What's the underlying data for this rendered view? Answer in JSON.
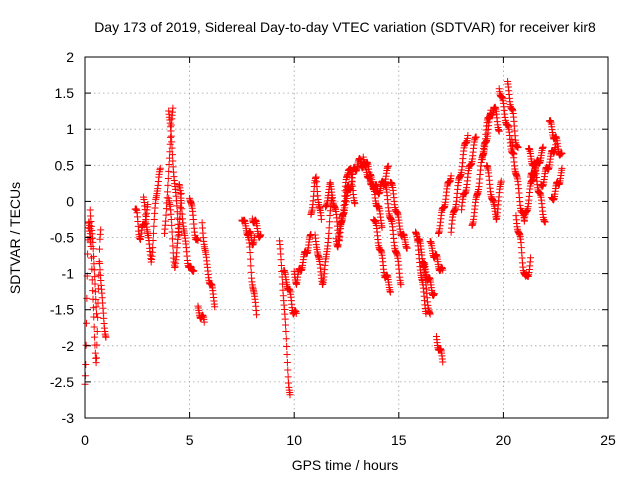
{
  "chart_data": {
    "type": "scatter",
    "title": "Day 173 of 2019, Sidereal Day-to-day VTEC variation (SDTVAR) for receiver kir8",
    "xlabel": "GPS time / hours",
    "ylabel": "SDTVAR / TECUs",
    "xlim": [
      0,
      25
    ],
    "ylim": [
      -3,
      2
    ],
    "xticks": [
      0,
      5,
      10,
      15,
      20,
      25
    ],
    "xtick_labels": [
      "0",
      "5",
      "10",
      "15",
      "20",
      "25"
    ],
    "yticks": [
      -3,
      -2.5,
      -2,
      -1.5,
      -1,
      -0.5,
      0,
      0.5,
      1,
      1.5,
      2
    ],
    "ytick_labels": [
      "-3",
      "-2.5",
      "-2",
      "-1.5",
      "-1",
      "-0.5",
      "0",
      "0.5",
      "1",
      "1.5",
      "2"
    ],
    "grid": true,
    "marker": "+",
    "color": "#ff0000",
    "series": [
      {
        "name": "SDTVAR",
        "segments": [
          {
            "x0": 0.0,
            "x1": 0.25,
            "y": [
              -2.55,
              -2.3,
              -1.8,
              -1.2,
              -0.7,
              -0.4,
              -0.3,
              -0.5,
              -0.6
            ]
          },
          {
            "x0": 0.2,
            "x1": 0.75,
            "y": [
              -0.3,
              -0.35,
              -0.5,
              -0.9,
              -1.3,
              -1.6,
              -1.9,
              -2.1,
              -2.2,
              -1.8,
              -1.4,
              -1.0,
              -0.6,
              -0.4
            ]
          },
          {
            "x0": 0.25,
            "x1": 0.55,
            "y": [
              -0.1,
              -0.25,
              -0.4,
              -0.6,
              -0.9,
              -1.1,
              -1.3,
              -1.5
            ]
          },
          {
            "x0": 0.7,
            "x1": 1.0,
            "y": [
              -0.8,
              -1.2,
              -1.5,
              -1.7,
              -1.85
            ]
          },
          {
            "x0": 2.4,
            "x1": 3.0,
            "y": [
              -0.1,
              -0.2,
              -0.4,
              -0.5,
              -0.4,
              -0.3,
              -0.2,
              -0.1
            ]
          },
          {
            "x0": 2.8,
            "x1": 3.6,
            "y": [
              0.0,
              -0.1,
              -0.3,
              -0.5,
              -0.7,
              -0.8,
              -0.6,
              -0.3,
              0.0,
              0.2,
              0.35,
              0.4
            ]
          },
          {
            "x0": 3.8,
            "x1": 4.2,
            "y": [
              -0.5,
              -0.3,
              0.0,
              0.2,
              0.4,
              0.6,
              0.9,
              1.2,
              1.35
            ]
          },
          {
            "x0": 4.0,
            "x1": 4.5,
            "y": [
              1.3,
              1.1,
              0.9,
              0.7,
              0.5,
              0.3,
              0.1,
              -0.1,
              -0.3,
              -0.4
            ]
          },
          {
            "x0": 4.0,
            "x1": 4.6,
            "y": [
              0.1,
              -0.1,
              -0.4,
              -0.7,
              -0.9,
              -0.8,
              -0.5,
              -0.2,
              0.1
            ]
          },
          {
            "x0": 4.5,
            "x1": 5.2,
            "y": [
              0.2,
              0.0,
              -0.3,
              -0.6,
              -0.8,
              -0.9,
              -1.0,
              -0.9
            ]
          },
          {
            "x0": 5.0,
            "x1": 5.4,
            "y": [
              0.1,
              -0.1,
              -0.3,
              -0.5,
              -0.6
            ]
          },
          {
            "x0": 5.4,
            "x1": 5.7,
            "y": [
              -1.5,
              -1.55,
              -1.6,
              -1.7
            ]
          },
          {
            "x0": 5.6,
            "x1": 6.2,
            "y": [
              -0.3,
              -0.5,
              -0.7,
              -0.9,
              -1.0,
              -1.1,
              -1.2,
              -1.3,
              -1.4
            ]
          },
          {
            "x0": 7.5,
            "x1": 8.1,
            "y": [
              -0.2,
              -0.3,
              -0.35,
              -0.4,
              -0.45,
              -0.5,
              -0.55,
              -0.5
            ]
          },
          {
            "x0": 7.8,
            "x1": 8.2,
            "y": [
              -0.5,
              -0.7,
              -1.0,
              -1.2,
              -1.4,
              -1.55
            ]
          },
          {
            "x0": 8.0,
            "x1": 8.4,
            "y": [
              -0.2,
              -0.3,
              -0.4,
              -0.5
            ]
          },
          {
            "x0": 9.3,
            "x1": 9.8,
            "y": [
              -0.6,
              -0.8,
              -1.0,
              -1.3,
              -1.6,
              -1.9,
              -2.2,
              -2.5,
              -2.7
            ]
          },
          {
            "x0": 9.5,
            "x1": 10.1,
            "y": [
              -1.0,
              -1.1,
              -1.3,
              -1.5,
              -1.6
            ]
          },
          {
            "x0": 10.0,
            "x1": 10.8,
            "y": [
              -1.0,
              -1.1,
              -1.0,
              -0.9,
              -0.8,
              -0.7,
              -0.6,
              -0.5
            ]
          },
          {
            "x0": 10.8,
            "x1": 11.3,
            "y": [
              -0.2,
              0.0,
              0.2,
              0.3,
              0.1,
              -0.1,
              -0.3
            ]
          },
          {
            "x0": 11.0,
            "x1": 11.8,
            "y": [
              -0.5,
              -0.6,
              -0.8,
              -1.0,
              -1.1,
              -1.0,
              -0.8,
              -0.5,
              -0.2,
              0.0
            ]
          },
          {
            "x0": 11.5,
            "x1": 12.6,
            "y": [
              -0.1,
              0.1,
              0.2,
              0.1,
              -0.1,
              -0.3,
              -0.5,
              -0.3,
              -0.1,
              0.1,
              0.2
            ]
          },
          {
            "x0": 12.0,
            "x1": 12.9,
            "y": [
              -0.5,
              -0.6,
              -0.4,
              -0.2,
              0.0,
              0.3,
              0.5,
              0.4,
              0.2,
              0.0
            ]
          },
          {
            "x0": 12.5,
            "x1": 14.5,
            "y": [
              0.0,
              0.2,
              0.4,
              0.5,
              0.55,
              0.5,
              0.4,
              0.3,
              0.2,
              0.15,
              0.2,
              0.3,
              0.45
            ]
          },
          {
            "x0": 13.3,
            "x1": 14.2,
            "y": [
              0.6,
              0.5,
              0.3,
              0.1,
              -0.1,
              -0.3
            ]
          },
          {
            "x0": 13.8,
            "x1": 14.6,
            "y": [
              -0.2,
              -0.4,
              -0.6,
              -0.8,
              -1.0,
              -1.1,
              -1.2
            ]
          },
          {
            "x0": 14.3,
            "x1": 15.1,
            "y": [
              0.3,
              0.1,
              -0.1,
              -0.3,
              -0.5,
              -0.7,
              -0.9,
              -1.1
            ]
          },
          {
            "x0": 14.6,
            "x1": 15.4,
            "y": [
              0.3,
              0.0,
              -0.3,
              -0.5,
              -0.6
            ]
          },
          {
            "x0": 15.8,
            "x1": 16.3,
            "y": [
              -0.4,
              -0.6,
              -0.8,
              -1.1,
              -1.3,
              -1.5
            ]
          },
          {
            "x0": 15.9,
            "x1": 16.5,
            "y": [
              -0.5,
              -0.6,
              -0.7,
              -0.9,
              -1.2,
              -1.4,
              -1.6
            ]
          },
          {
            "x0": 16.2,
            "x1": 16.7,
            "y": [
              -0.9,
              -1.0,
              -1.1,
              -1.2,
              -1.3
            ]
          },
          {
            "x0": 16.5,
            "x1": 17.1,
            "y": [
              -0.6,
              -0.7,
              -0.8,
              -0.9,
              -1.0
            ]
          },
          {
            "x0": 16.8,
            "x1": 17.1,
            "y": [
              -1.9,
              -2.0,
              -2.1,
              -2.2
            ]
          },
          {
            "x0": 16.9,
            "x1": 17.5,
            "y": [
              -0.4,
              -0.2,
              0.0,
              0.2,
              0.4
            ]
          },
          {
            "x0": 17.5,
            "x1": 18.3,
            "y": [
              -0.4,
              -0.2,
              0.0,
              0.2,
              0.4,
              0.6,
              0.8,
              0.95
            ]
          },
          {
            "x0": 18.0,
            "x1": 18.7,
            "y": [
              -0.1,
              0.1,
              0.3,
              0.5,
              0.7,
              0.9
            ]
          },
          {
            "x0": 18.5,
            "x1": 19.4,
            "y": [
              -0.3,
              -0.1,
              0.2,
              0.5,
              0.8,
              1.1,
              1.3
            ]
          },
          {
            "x0": 19.0,
            "x1": 19.8,
            "y": [
              0.6,
              0.8,
              1.0,
              1.2,
              1.3,
              1.2,
              1.0
            ]
          },
          {
            "x0": 19.2,
            "x1": 19.9,
            "y": [
              0.5,
              0.3,
              0.1,
              -0.1,
              -0.2,
              0.0,
              0.3
            ]
          },
          {
            "x0": 19.8,
            "x1": 20.5,
            "y": [
              1.6,
              1.4,
              1.2,
              1.0,
              0.8,
              0.6
            ]
          },
          {
            "x0": 20.2,
            "x1": 20.7,
            "y": [
              1.6,
              1.4,
              1.2,
              0.9,
              0.7
            ]
          },
          {
            "x0": 20.4,
            "x1": 21.0,
            "y": [
              0.8,
              0.5,
              0.2,
              -0.1,
              -0.3
            ]
          },
          {
            "x0": 20.6,
            "x1": 21.3,
            "y": [
              -0.2,
              -0.4,
              -0.6,
              -0.9,
              -1.1,
              -1.0,
              -0.8
            ]
          },
          {
            "x0": 21.0,
            "x1": 21.5,
            "y": [
              -0.3,
              -0.1,
              0.1,
              0.3,
              0.5
            ]
          },
          {
            "x0": 21.2,
            "x1": 22.0,
            "y": [
              0.7,
              0.6,
              0.5,
              0.3,
              0.1,
              -0.1,
              -0.3
            ]
          },
          {
            "x0": 21.3,
            "x1": 21.9,
            "y": [
              0.3,
              0.4,
              0.5,
              0.6,
              0.7
            ]
          },
          {
            "x0": 21.8,
            "x1": 22.5,
            "y": [
              0.2,
              0.3,
              0.4,
              0.5,
              0.6,
              0.7,
              0.8
            ]
          },
          {
            "x0": 22.2,
            "x1": 22.8,
            "y": [
              1.1,
              1.0,
              0.9,
              0.8,
              0.7,
              0.6
            ]
          },
          {
            "x0": 22.3,
            "x1": 22.8,
            "y": [
              0.0,
              0.1,
              0.2,
              0.3,
              0.4
            ]
          }
        ]
      }
    ]
  }
}
